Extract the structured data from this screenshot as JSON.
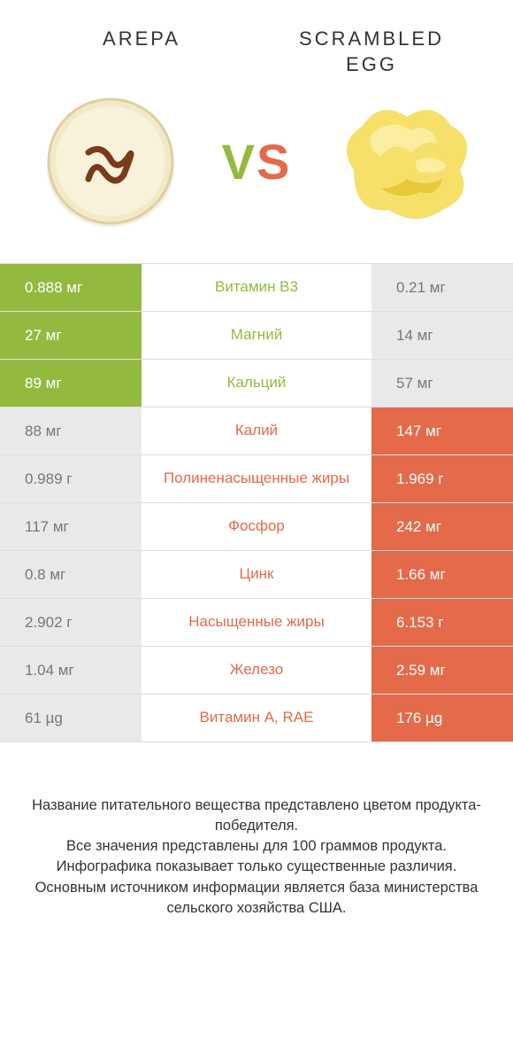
{
  "colors": {
    "left_win": "#94b93f",
    "right_win": "#e46a4a",
    "lose": "#e9e9e9",
    "mid_left_text": "#94b93f",
    "mid_right_text": "#e46a4a",
    "border": "#dddddd",
    "text": "#333333"
  },
  "header": {
    "left_title": "Arepa",
    "right_title": "Scrambled egg",
    "vs_v": "V",
    "vs_s": "S"
  },
  "rows": [
    {
      "left": "0.888 мг",
      "mid": "Витамин B3",
      "right": "0.21 мг",
      "winner": "left"
    },
    {
      "left": "27 мг",
      "mid": "Магний",
      "right": "14 мг",
      "winner": "left"
    },
    {
      "left": "89 мг",
      "mid": "Кальций",
      "right": "57 мг",
      "winner": "left"
    },
    {
      "left": "88 мг",
      "mid": "Калий",
      "right": "147 мг",
      "winner": "right"
    },
    {
      "left": "0.989 г",
      "mid": "Полиненасыщенные жиры",
      "right": "1.969 г",
      "winner": "right"
    },
    {
      "left": "117 мг",
      "mid": "Фосфор",
      "right": "242 мг",
      "winner": "right"
    },
    {
      "left": "0.8 мг",
      "mid": "Цинк",
      "right": "1.66 мг",
      "winner": "right"
    },
    {
      "left": "2.902 г",
      "mid": "Насыщенные жиры",
      "right": "6.153 г",
      "winner": "right"
    },
    {
      "left": "1.04 мг",
      "mid": "Железо",
      "right": "2.59 мг",
      "winner": "right"
    },
    {
      "left": "61 µg",
      "mid": "Витамин A, RAE",
      "right": "176 µg",
      "winner": "right"
    }
  ],
  "footer": {
    "line1": "Название питательного вещества представлено цветом продукта-победителя.",
    "line2": "Все значения представлены для 100 граммов продукта.",
    "line3": "Инфографика показывает только существенные различия.",
    "line4": "Основным источником информации является база министерства сельского хозяйства США."
  }
}
